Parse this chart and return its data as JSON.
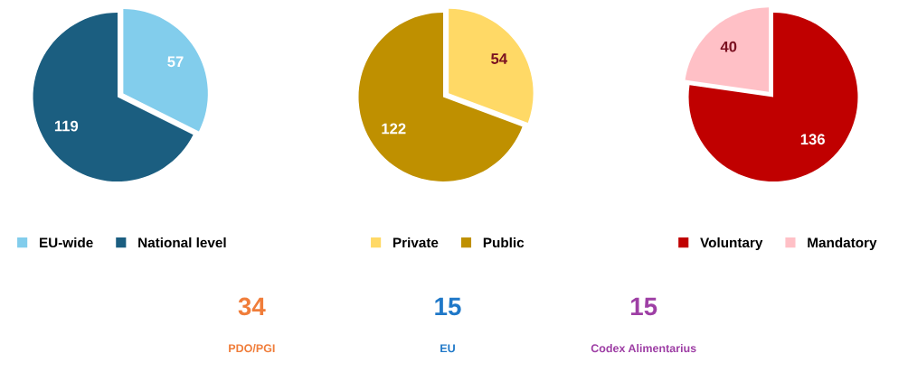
{
  "chart_data": [
    {
      "type": "pie",
      "categories": [
        "EU-wide",
        "National level"
      ],
      "values": [
        57,
        119
      ],
      "colors": [
        "#82cdec",
        "#1b5e80"
      ],
      "data_labels": true,
      "legend": "bottom"
    },
    {
      "type": "pie",
      "categories": [
        "Private",
        "Public"
      ],
      "values": [
        54,
        122
      ],
      "colors": [
        "#ffd966",
        "#bf9000"
      ],
      "data_labels": true,
      "legend": "bottom"
    },
    {
      "type": "pie",
      "categories": [
        "Voluntary",
        "Mandatory"
      ],
      "values": [
        136,
        40
      ],
      "colors": [
        "#c00000",
        "#ffc0c6"
      ],
      "data_labels": true,
      "legend": "bottom"
    },
    {
      "type": "other",
      "annotations": [
        "34",
        "PDO/PGI",
        "15",
        "EU",
        "15",
        "Codex Alimentarius"
      ],
      "colors": [
        "#f07d3a",
        "#1f78c8",
        "#9e3fa5"
      ]
    }
  ]
}
